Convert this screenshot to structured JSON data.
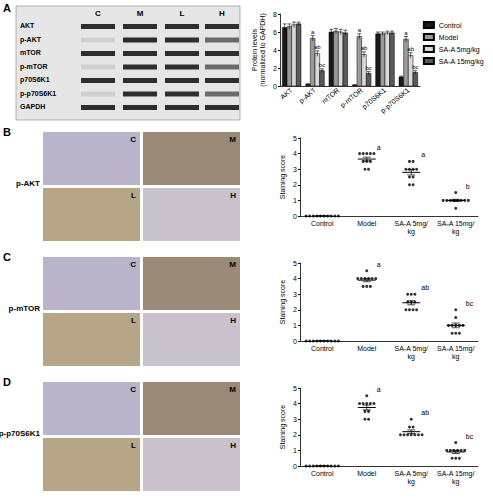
{
  "blot": {
    "title": "A",
    "columns": [
      "C",
      "M",
      "L",
      "H"
    ],
    "rows": [
      "AKT",
      "p-AKT",
      "mTOR",
      "p-mTOR",
      "p70S6K1",
      "p-p70S6K1",
      "GAPDH"
    ]
  },
  "ihc_image_labels": [
    "C",
    "M",
    "L",
    "H"
  ],
  "chart_data": [
    {
      "type": "bar",
      "categories": [
        "AKT",
        "p-AKT",
        "mTOR",
        "p-mTOR",
        "p70S6K1",
        "p-p70S6K1"
      ],
      "y_label": "Protein levels (normalized to GAPDH)",
      "ylim": [
        0,
        8
      ],
      "yticks": [
        0,
        2,
        4,
        6,
        8
      ],
      "grid": false,
      "legend": "right",
      "series": [
        {
          "name": "Control",
          "color": "#1a1a1a",
          "values": [
            6.5,
            0.2,
            6.0,
            0.1,
            5.8,
            1.0
          ],
          "errors": [
            0.4,
            0.05,
            0.3,
            0.05,
            0.2,
            0.1
          ],
          "letters": [
            null,
            null,
            null,
            null,
            null,
            null
          ]
        },
        {
          "name": "Model",
          "color": "#9a9a9a",
          "values": [
            6.6,
            5.3,
            6.1,
            5.5,
            5.8,
            5.2
          ],
          "errors": [
            0.3,
            0.3,
            0.3,
            0.3,
            0.2,
            0.3
          ],
          "letters": [
            null,
            "a",
            null,
            "a",
            null,
            "a"
          ]
        },
        {
          "name": "SA-A 5mg/kg",
          "color": "#d9d9d9",
          "values": [
            6.8,
            3.6,
            6.0,
            3.5,
            5.9,
            3.4
          ],
          "errors": [
            0.3,
            0.3,
            0.3,
            0.3,
            0.2,
            0.3
          ],
          "letters": [
            null,
            "ab",
            null,
            "ab",
            null,
            "ab"
          ]
        },
        {
          "name": "SA-A 15mg/kg",
          "color": "#5a5a5a",
          "values": [
            6.9,
            1.7,
            5.9,
            1.4,
            5.9,
            1.5
          ],
          "errors": [
            0.2,
            0.2,
            0.3,
            0.2,
            0.2,
            0.2
          ],
          "letters": [
            null,
            "bc",
            null,
            "bc",
            null,
            "bc"
          ]
        }
      ]
    },
    {
      "type": "scatter",
      "title": "B",
      "image_label": "p-AKT",
      "categories": [
        "Control",
        "Model",
        "SA-A 5mg/kg",
        "SA-A 15mg/kg"
      ],
      "y_label": "Staining score",
      "ylim": [
        0,
        5
      ],
      "yticks": [
        0,
        1,
        2,
        3,
        4,
        5
      ],
      "grid": false,
      "points": [
        [
          0,
          0,
          0,
          0,
          0,
          0,
          0,
          0,
          0,
          0
        ],
        [
          4,
          4,
          4,
          4,
          4,
          3.5,
          3.5,
          3.5,
          3,
          3
        ],
        [
          3.5,
          3.5,
          3,
          3,
          3,
          3,
          2.5,
          2.5,
          2,
          2
        ],
        [
          1.5,
          1,
          1,
          1,
          1,
          1,
          1,
          1,
          1,
          0.5
        ]
      ],
      "means": [
        0,
        3.65,
        2.8,
        1.0
      ],
      "errors": [
        0,
        0.12,
        0.17,
        0.07
      ],
      "letters": [
        null,
        "a",
        "a",
        "b"
      ]
    },
    {
      "type": "scatter",
      "title": "C",
      "image_label": "p-mTOR",
      "categories": [
        "Control",
        "Model",
        "SA-A 5mg/kg",
        "SA-A 15mg/kg"
      ],
      "y_label": "Staining score",
      "ylim": [
        0,
        5
      ],
      "yticks": [
        0,
        1,
        2,
        3,
        4,
        5
      ],
      "grid": false,
      "points": [
        [
          0,
          0,
          0,
          0,
          0,
          0,
          0,
          0,
          0,
          0
        ],
        [
          4.5,
          4,
          4,
          4,
          4,
          4,
          4,
          3.5,
          3.5,
          3.5
        ],
        [
          3,
          3,
          3,
          2.5,
          2.5,
          2.5,
          2,
          2,
          2,
          2
        ],
        [
          2,
          1.5,
          1,
          1,
          1,
          1,
          1,
          0.5,
          0.5,
          0.5
        ]
      ],
      "means": [
        0,
        3.9,
        2.45,
        1.0
      ],
      "errors": [
        0,
        0.1,
        0.13,
        0.15
      ],
      "letters": [
        null,
        "a",
        "ab",
        "bc"
      ]
    },
    {
      "type": "scatter",
      "title": "D",
      "image_label": "p-p70S6K1",
      "categories": [
        "Control",
        "Model",
        "SA-A 5mg/kg",
        "SA-A 15mg/kg"
      ],
      "y_label": "Staining score",
      "ylim": [
        0,
        5
      ],
      "yticks": [
        0,
        1,
        2,
        3,
        4,
        5
      ],
      "grid": false,
      "points": [
        [
          0,
          0,
          0,
          0,
          0,
          0,
          0,
          0,
          0,
          0
        ],
        [
          4.5,
          4,
          4,
          4,
          4,
          4,
          3.5,
          3.5,
          3,
          3
        ],
        [
          3,
          2.5,
          2.5,
          2,
          2,
          2,
          2,
          2,
          2,
          2
        ],
        [
          1.5,
          1,
          1,
          1,
          1,
          1,
          1,
          0.5,
          0.5,
          0.5
        ]
      ],
      "means": [
        0,
        3.75,
        2.2,
        0.9
      ],
      "errors": [
        0,
        0.15,
        0.11,
        0.1
      ],
      "letters": [
        null,
        "a",
        "ab",
        "bc"
      ]
    }
  ]
}
